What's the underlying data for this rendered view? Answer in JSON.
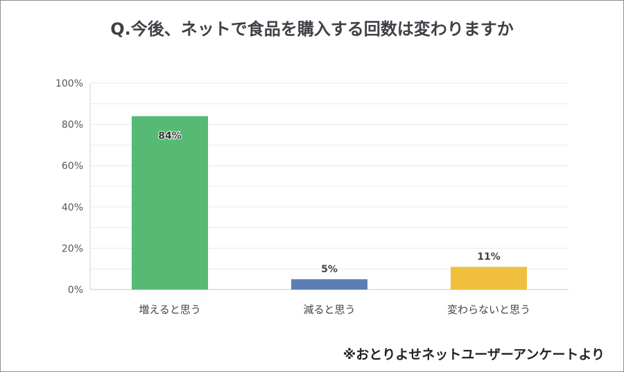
{
  "title": "Q.今後、ネットで食品を購入する回数は変わりますか",
  "note": "※おとりよせネットユーザーアンケートより",
  "chart_data": {
    "type": "bar",
    "title": "Q.今後、ネットで食品を購入する回数は変わりますか",
    "xlabel": "",
    "ylabel": "",
    "categories": [
      "増えると思う",
      "減ると思う",
      "変わらないと思う"
    ],
    "values": [
      84,
      5,
      11
    ],
    "data_labels": [
      "84%",
      "5%",
      "11%"
    ],
    "ylim": [
      0,
      100
    ],
    "yticks": [
      0,
      20,
      40,
      60,
      80,
      100
    ],
    "ytick_labels": [
      "0%",
      "20%",
      "40%",
      "60%",
      "80%",
      "100%"
    ],
    "grid": true,
    "legend": "none",
    "colors": [
      "#56b974",
      "#5b7fb5",
      "#f0bf3e"
    ]
  }
}
